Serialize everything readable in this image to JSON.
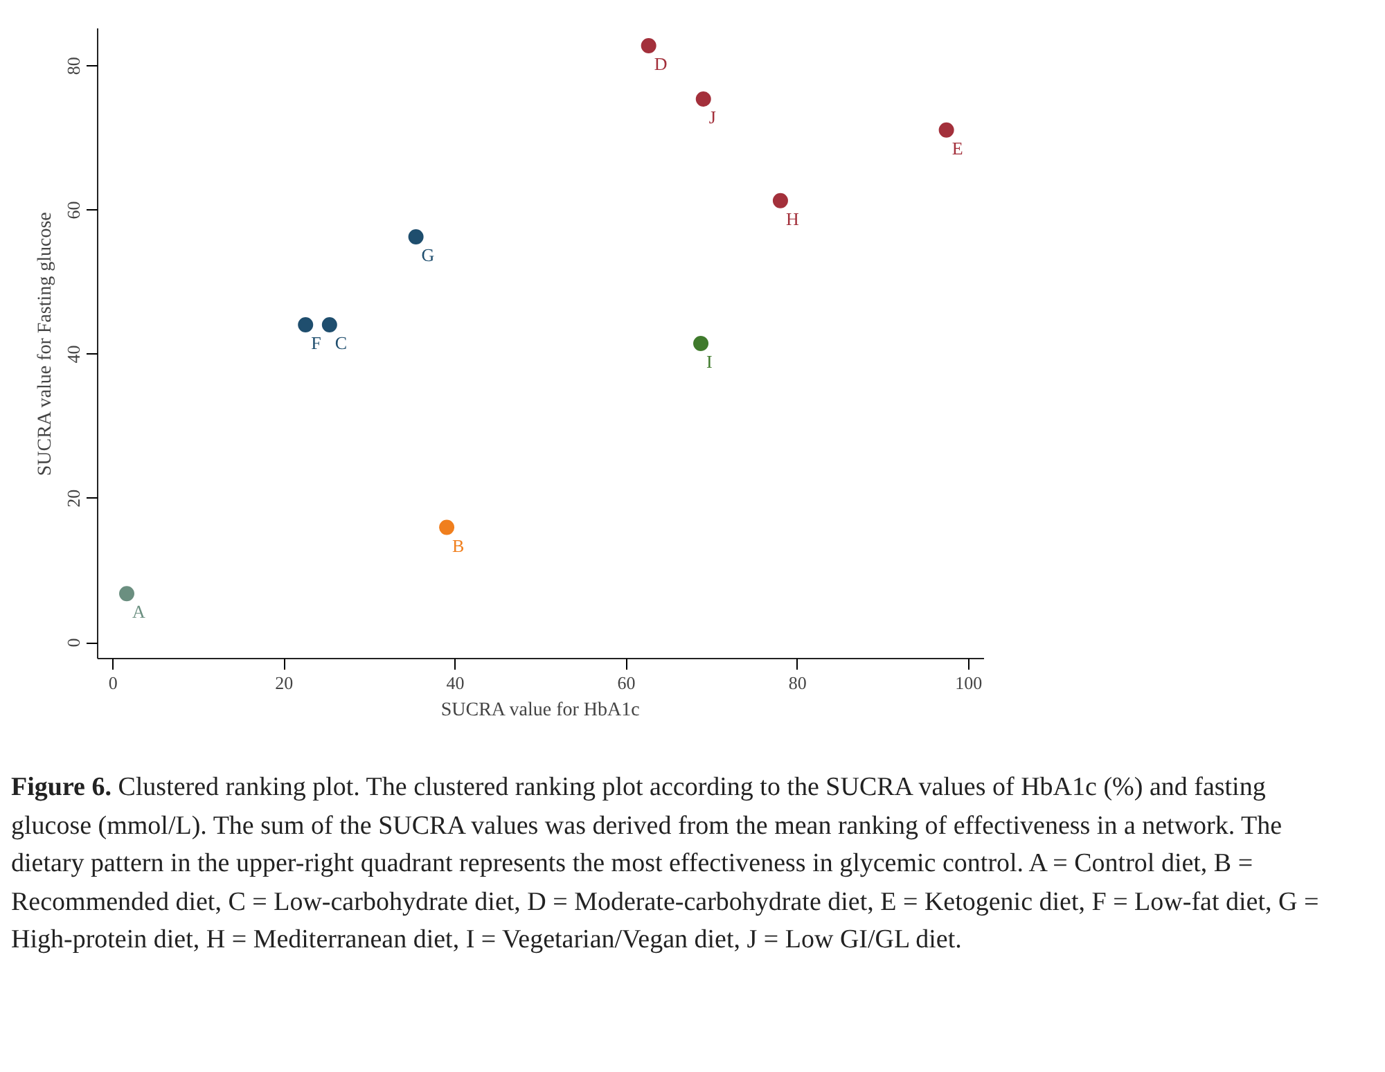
{
  "chart_data": {
    "type": "scatter",
    "xlabel": "SUCRA value for HbA1c",
    "ylabel": "SUCRA value for Fasting glucose",
    "xlim": [
      -1.8,
      101.8
    ],
    "ylim": [
      -2.2,
      85.2
    ],
    "xticks": [
      0,
      20,
      40,
      60,
      80,
      100
    ],
    "yticks": [
      0,
      20,
      40,
      60,
      80
    ],
    "grid": false,
    "marker": "circle",
    "series": [
      {
        "name": "A",
        "color": "#6b8f80",
        "x": [
          1.6
        ],
        "values": [
          6.8
        ]
      },
      {
        "name": "B",
        "color": "#f07f1e",
        "x": [
          39.0
        ],
        "values": [
          16.0
        ]
      },
      {
        "name": "C",
        "color": "#1f4e6e",
        "x": [
          25.3
        ],
        "values": [
          44.1
        ]
      },
      {
        "name": "D",
        "color": "#a3303b",
        "x": [
          62.6
        ],
        "values": [
          82.8
        ]
      },
      {
        "name": "E",
        "color": "#a3303b",
        "x": [
          97.4
        ],
        "values": [
          71.1
        ]
      },
      {
        "name": "F",
        "color": "#1f4e6e",
        "x": [
          22.5
        ],
        "values": [
          44.1
        ]
      },
      {
        "name": "G",
        "color": "#1f4e6e",
        "x": [
          35.4
        ],
        "values": [
          56.3
        ]
      },
      {
        "name": "H",
        "color": "#a3303b",
        "x": [
          78.0
        ],
        "values": [
          61.3
        ]
      },
      {
        "name": "I",
        "color": "#3f7a2c",
        "x": [
          68.7
        ],
        "values": [
          41.5
        ]
      },
      {
        "name": "J",
        "color": "#a3303b",
        "x": [
          69.0
        ],
        "values": [
          75.4
        ]
      }
    ],
    "annotations": [
      "Figure 6.",
      "Clustered ranking plot. The clustered ranking plot according to the SUCRA values of HbA1c (%) and fasting glucose (mmol/L). The sum of the SUCRA values was derived from the mean ranking of effectiveness in a network. The dietary pattern in the upper-right quadrant represents the most effectiveness in glycemic control. A = Control diet, B = Recommended diet, C = Low-carbohydrate diet, D = Moderate-carbohydrate diet, E = Ketogenic diet, F = Low-fat diet, G = High-protein diet, H = Mediterranean diet, I = Vegetarian/Vegan diet, J = Low GI/GL diet."
    ]
  }
}
